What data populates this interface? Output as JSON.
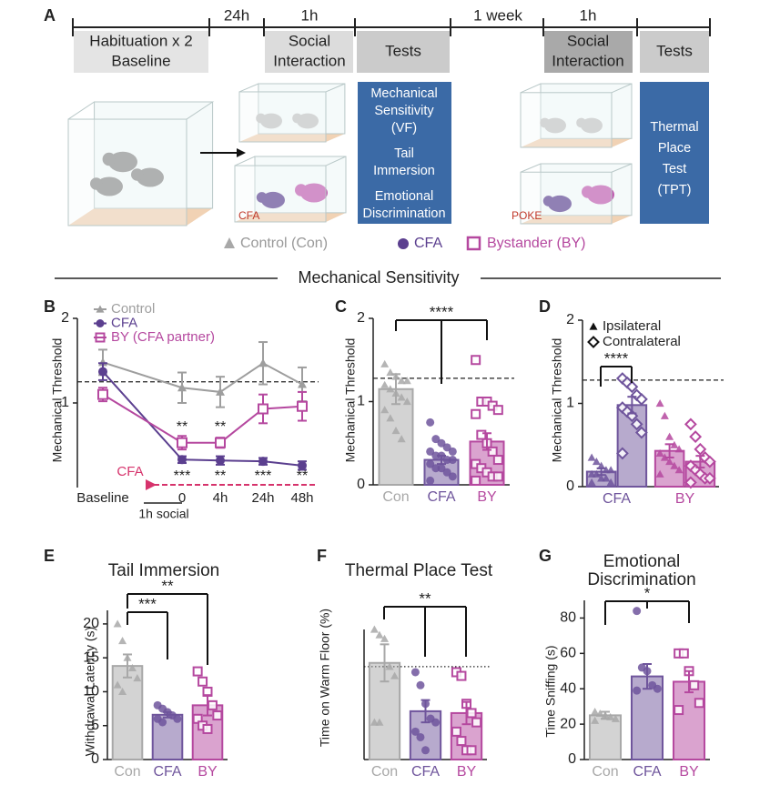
{
  "figure": {
    "panel": "A",
    "phases": [
      {
        "lines": [
          "Habituation x 2",
          "Baseline"
        ]
      },
      {
        "lines": [
          "Social",
          "Interaction"
        ]
      },
      {
        "lines": [
          "Tests"
        ]
      },
      {
        "lines": [
          "Social",
          "Interaction"
        ]
      },
      {
        "lines": [
          "Tests"
        ]
      }
    ],
    "intervals": [
      "24h",
      "1h",
      "1 week",
      "1h"
    ],
    "tests": [
      {
        "lines": [
          "Mechanical",
          "Sensitivity",
          "(VF)",
          "Tail",
          "Immersion",
          "Emotional",
          "Discrimination"
        ]
      },
      {
        "lines": [
          "Thermal",
          "Place",
          "Test",
          "(TPT)"
        ]
      }
    ],
    "cage_labels": [
      "CFA",
      "POKE"
    ],
    "legend": [
      "Control (Con)",
      "CFA",
      "Bystander (BY)"
    ],
    "section_title": "Mechanical Sensitivity"
  },
  "chart_data": [
    {
      "type": "line",
      "panel": "B",
      "ylabel": "Mechanical Threshold",
      "categories": [
        "Baseline",
        "0",
        "4h",
        "24h",
        "48h"
      ],
      "ylim": [
        0,
        2
      ],
      "yticks": [
        1,
        2
      ],
      "reference_line": 1.25,
      "series": [
        {
          "name": "Control",
          "color": "#9e9e9e",
          "marker": "triangle",
          "values": [
            1.48,
            1.18,
            1.13,
            1.47,
            1.22
          ],
          "errors": [
            0.15,
            0.18,
            0.18,
            0.25,
            0.2
          ]
        },
        {
          "name": "CFA",
          "color": "#5b3f8f",
          "marker": "circle",
          "values": [
            1.37,
            0.33,
            0.32,
            0.31,
            0.26
          ],
          "errors": [
            0.1,
            0.04,
            0.05,
            0.04,
            0.05
          ]
        },
        {
          "name": "BY (CFA partner)",
          "color": "#b5489f",
          "marker": "square",
          "values": [
            1.1,
            0.53,
            0.53,
            0.93,
            0.96
          ],
          "errors": [
            0.08,
            0.08,
            0.06,
            0.17,
            0.17
          ]
        }
      ],
      "annotations": [
        "**",
        "**",
        "***",
        "**",
        "***",
        "**"
      ],
      "event_label": "CFA",
      "x_note": "1h social"
    },
    {
      "type": "bar",
      "panel": "C",
      "ylabel": "Mechanical Threshold",
      "categories": [
        "Con",
        "CFA",
        "BY"
      ],
      "colors": [
        "#a8a8a8",
        "#6f559c",
        "#b5489f"
      ],
      "markers": [
        "triangle",
        "circle",
        "square"
      ],
      "values": [
        1.15,
        0.3,
        0.52
      ],
      "errors": [
        0.18,
        0.05,
        0.1
      ],
      "points": [
        [
          1.45,
          1.35,
          1.3,
          1.25,
          1.25,
          1.2,
          1.15,
          1.1,
          1.05,
          1.0,
          0.9,
          0.8,
          0.65,
          0.55
        ],
        [
          0.75,
          0.55,
          0.5,
          0.45,
          0.4,
          0.4,
          0.35,
          0.35,
          0.3,
          0.3,
          0.25,
          0.2,
          0.2,
          0.15,
          0.1,
          0.05
        ],
        [
          1.5,
          1.0,
          1.0,
          0.95,
          0.9,
          0.85,
          0.6,
          0.5,
          0.4,
          0.3,
          0.25,
          0.2,
          0.15,
          0.1,
          0.1,
          0.05
        ]
      ],
      "ylim": [
        0,
        2
      ],
      "yticks": [
        0,
        1,
        2
      ],
      "reference_line": 1.28,
      "significance": [
        "****"
      ]
    },
    {
      "type": "bar",
      "panel": "D",
      "ylabel": "Mechanical Threshold",
      "categories": [
        "CFA",
        "BY"
      ],
      "colors": [
        "#6f559c",
        "#b5489f"
      ],
      "series": [
        {
          "name": "Ipsilateral",
          "marker": "triangle",
          "values": [
            0.18,
            0.43
          ],
          "errors": [
            0.04,
            0.08
          ],
          "points": [
            [
              0.35,
              0.3,
              0.25,
              0.2,
              0.2,
              0.15,
              0.15,
              0.1,
              0.1,
              0.05,
              0.05
            ],
            [
              1.0,
              0.85,
              0.6,
              0.5,
              0.45,
              0.4,
              0.35,
              0.3,
              0.25,
              0.2,
              0.15
            ]
          ]
        },
        {
          "name": "Contralateral",
          "marker": "diamond",
          "values": [
            0.98,
            0.3
          ],
          "errors": [
            0.1,
            0.07
          ],
          "points": [
            [
              1.3,
              1.25,
              1.2,
              1.1,
              1.05,
              0.95,
              0.9,
              0.85,
              0.75,
              0.65,
              0.4
            ],
            [
              0.75,
              0.6,
              0.45,
              0.35,
              0.3,
              0.25,
              0.2,
              0.15,
              0.1,
              0.1,
              0.05
            ]
          ]
        }
      ],
      "ylim": [
        0,
        2
      ],
      "yticks": [
        0,
        1,
        2
      ],
      "reference_line": 1.28,
      "significance": [
        "****"
      ]
    },
    {
      "type": "bar",
      "panel": "E",
      "title": "Tail Immersion",
      "ylabel": "Withdrawal Latency (s)",
      "categories": [
        "Con",
        "CFA",
        "BY"
      ],
      "colors": [
        "#a8a8a8",
        "#6f559c",
        "#b5489f"
      ],
      "markers": [
        "triangle",
        "circle",
        "square"
      ],
      "values": [
        13.8,
        6.6,
        8.0
      ],
      "errors": [
        1.7,
        0.4,
        1.5
      ],
      "points": [
        [
          20,
          17.5,
          15,
          13.5,
          12,
          11,
          10
        ],
        [
          8,
          7.5,
          7,
          6.5,
          6,
          6,
          5.5
        ],
        [
          13,
          11.5,
          10,
          8,
          6.5,
          6,
          5,
          4.5
        ]
      ],
      "ylim": [
        0,
        22
      ],
      "yticks": [
        0,
        5,
        10,
        15,
        20
      ],
      "significance": [
        "***",
        "**"
      ]
    },
    {
      "type": "bar",
      "panel": "F",
      "title": "Thermal Place Test",
      "ylabel": "Time on Warm Floor (%)",
      "categories": [
        "Con",
        "CFA",
        "BY"
      ],
      "colors": [
        "#a8a8a8",
        "#6f559c",
        "#b5489f"
      ],
      "markers": [
        "triangle",
        "circle",
        "square"
      ],
      "values": [
        52,
        26,
        25
      ],
      "errors": [
        10,
        6,
        6
      ],
      "points": [
        [
          70,
          67,
          65,
          50,
          45,
          20,
          20
        ],
        [
          47,
          40,
          30,
          22,
          20,
          15,
          12,
          5
        ],
        [
          47,
          45,
          30,
          25,
          20,
          15,
          10,
          5,
          5
        ]
      ],
      "ylim": [
        0,
        70
      ],
      "reference_line": 50,
      "reference_style": "dotted",
      "significance": [
        "**"
      ]
    },
    {
      "type": "bar",
      "panel": "G",
      "title_lines": [
        "Emotional",
        "Discrimination"
      ],
      "ylabel": "Time Sniffing (s)",
      "categories": [
        "Con",
        "CFA",
        "BY"
      ],
      "colors": [
        "#a8a8a8",
        "#6f559c",
        "#b5489f"
      ],
      "markers": [
        "triangle",
        "circle",
        "square"
      ],
      "values": [
        25,
        47,
        44
      ],
      "errors": [
        2,
        7,
        6
      ],
      "points": [
        [
          27,
          26,
          25,
          24,
          23,
          22
        ],
        [
          84,
          52,
          50,
          42,
          40,
          39
        ],
        [
          60,
          60,
          50,
          42,
          32,
          28
        ]
      ],
      "ylim": [
        0,
        90
      ],
      "yticks": [
        0,
        20,
        40,
        60,
        80
      ],
      "significance": [
        "*"
      ]
    }
  ]
}
